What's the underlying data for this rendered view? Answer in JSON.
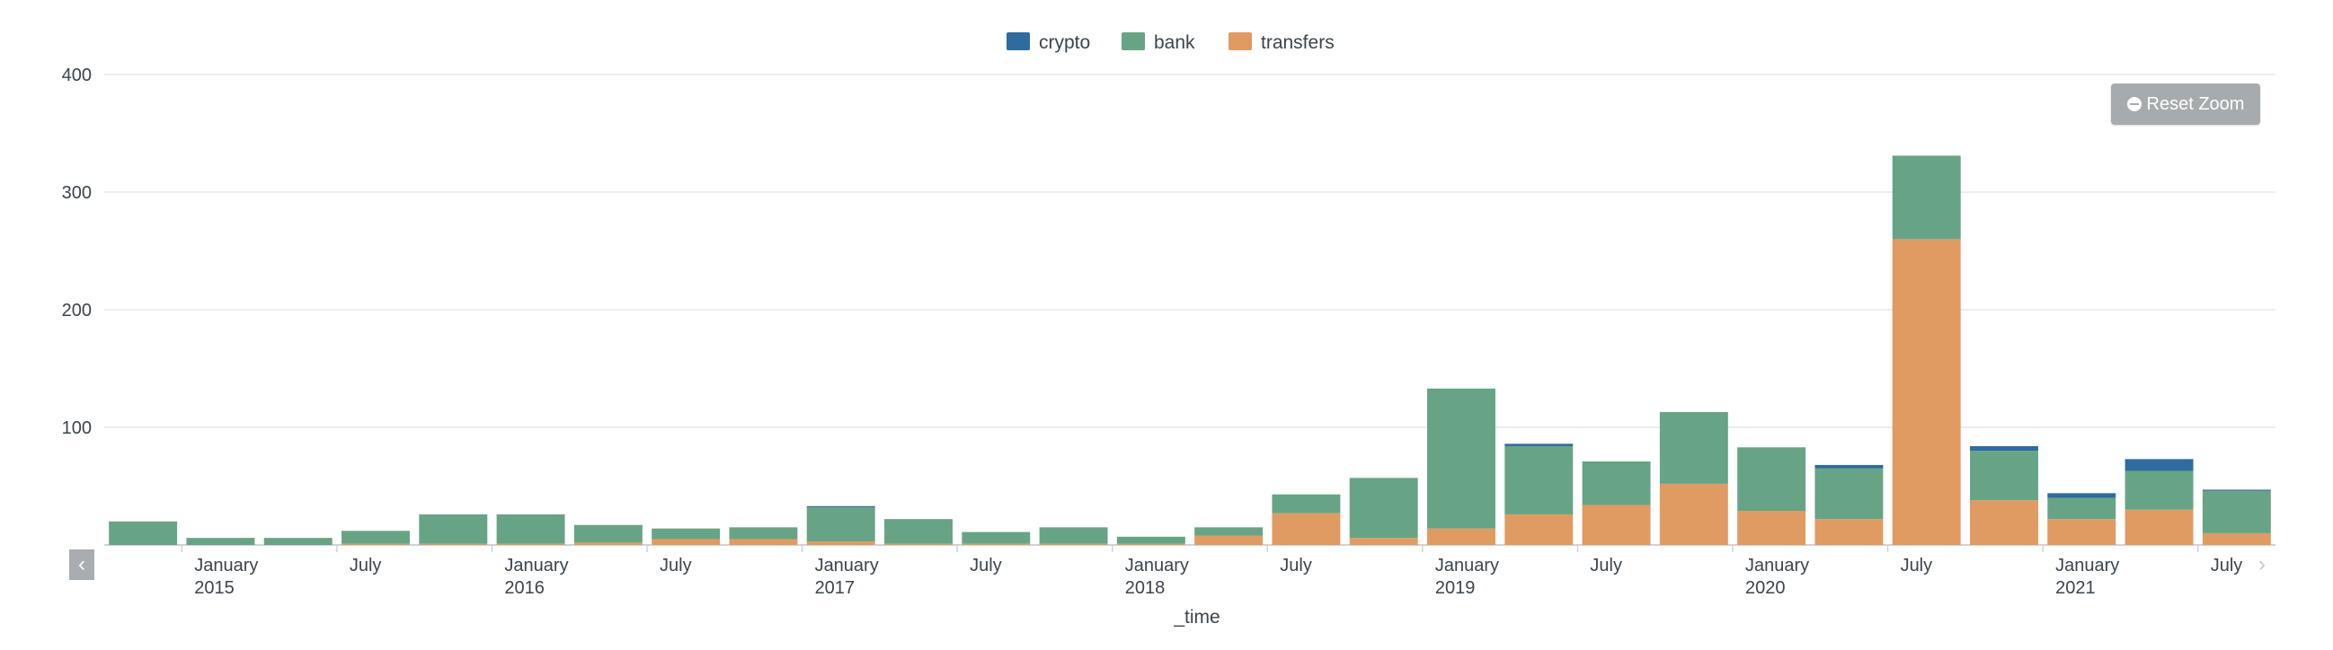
{
  "chart_data": {
    "type": "bar",
    "stacked": true,
    "xlabel": "_time",
    "ylabel": "",
    "ylim": [
      0,
      400
    ],
    "yticks": [
      0,
      100,
      200,
      300,
      400
    ],
    "grid": true,
    "legend_position": "top-center",
    "series_colors": {
      "crypto": "#2e6b9e",
      "bank": "#67a486",
      "transfers": "#e09b62"
    },
    "x_period": "quarter",
    "x_start": "2014 Q4",
    "x_end": "2021 Q3",
    "x": [
      "2014 Q4",
      "2015 Q1",
      "2015 Q2",
      "2015 Q3",
      "2015 Q4",
      "2016 Q1",
      "2016 Q2",
      "2016 Q3",
      "2016 Q4",
      "2017 Q1",
      "2017 Q2",
      "2017 Q3",
      "2017 Q4",
      "2018 Q1",
      "2018 Q2",
      "2018 Q3",
      "2018 Q4",
      "2019 Q1",
      "2019 Q2",
      "2019 Q3",
      "2019 Q4",
      "2020 Q1",
      "2020 Q2",
      "2020 Q3",
      "2020 Q4",
      "2021 Q1",
      "2021 Q2",
      "2021 Q3"
    ],
    "series": [
      {
        "name": "transfers",
        "values": [
          0,
          0,
          0,
          1,
          1,
          1,
          2,
          5,
          5,
          3,
          1,
          1,
          1,
          1,
          8,
          27,
          6,
          14,
          26,
          34,
          52,
          29,
          22,
          260,
          38,
          22,
          30,
          10
        ]
      },
      {
        "name": "bank",
        "values": [
          20,
          6,
          6,
          11,
          25,
          25,
          15,
          9,
          10,
          29,
          21,
          10,
          14,
          6,
          7,
          16,
          51,
          119,
          58,
          37,
          61,
          54,
          43,
          71,
          42,
          18,
          33,
          36
        ]
      },
      {
        "name": "crypto",
        "values": [
          0,
          0,
          0,
          0,
          0,
          0,
          0,
          0,
          0,
          1,
          0,
          0,
          0,
          0,
          0,
          0,
          0,
          0,
          2,
          0,
          0,
          0,
          3,
          0,
          4,
          4,
          10,
          1
        ]
      }
    ],
    "tick_labels": [
      {
        "quarter": "2015 Q1",
        "line1": "January",
        "line2": "2015"
      },
      {
        "quarter": "2015 Q3",
        "line1": "July",
        "line2": ""
      },
      {
        "quarter": "2016 Q1",
        "line1": "January",
        "line2": "2016"
      },
      {
        "quarter": "2016 Q3",
        "line1": "July",
        "line2": ""
      },
      {
        "quarter": "2017 Q1",
        "line1": "January",
        "line2": "2017"
      },
      {
        "quarter": "2017 Q3",
        "line1": "July",
        "line2": ""
      },
      {
        "quarter": "2018 Q1",
        "line1": "January",
        "line2": "2018"
      },
      {
        "quarter": "2018 Q3",
        "line1": "July",
        "line2": ""
      },
      {
        "quarter": "2019 Q1",
        "line1": "January",
        "line2": "2019"
      },
      {
        "quarter": "2019 Q3",
        "line1": "July",
        "line2": ""
      },
      {
        "quarter": "2020 Q1",
        "line1": "January",
        "line2": "2020"
      },
      {
        "quarter": "2020 Q3",
        "line1": "July",
        "line2": ""
      },
      {
        "quarter": "2021 Q1",
        "line1": "January",
        "line2": "2021"
      },
      {
        "quarter": "2021 Q3",
        "line1": "July",
        "line2": ""
      }
    ],
    "legend": [
      "crypto",
      "bank",
      "transfers"
    ]
  },
  "controls": {
    "reset_zoom_label": "Reset Zoom",
    "scroll_left_glyph": "‹",
    "scroll_right_glyph": "›"
  }
}
